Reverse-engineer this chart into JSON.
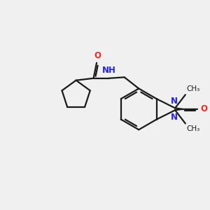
{
  "background_color": "#f0f0f0",
  "bond_color": "#1a1a1a",
  "N_color": "#2020ff",
  "O_color": "#ff2020",
  "line_width": 1.6,
  "figsize": [
    3.0,
    3.0
  ],
  "dpi": 100,
  "xlim": [
    -1.5,
    8.5
  ],
  "ylim": [
    -1.5,
    5.5
  ]
}
